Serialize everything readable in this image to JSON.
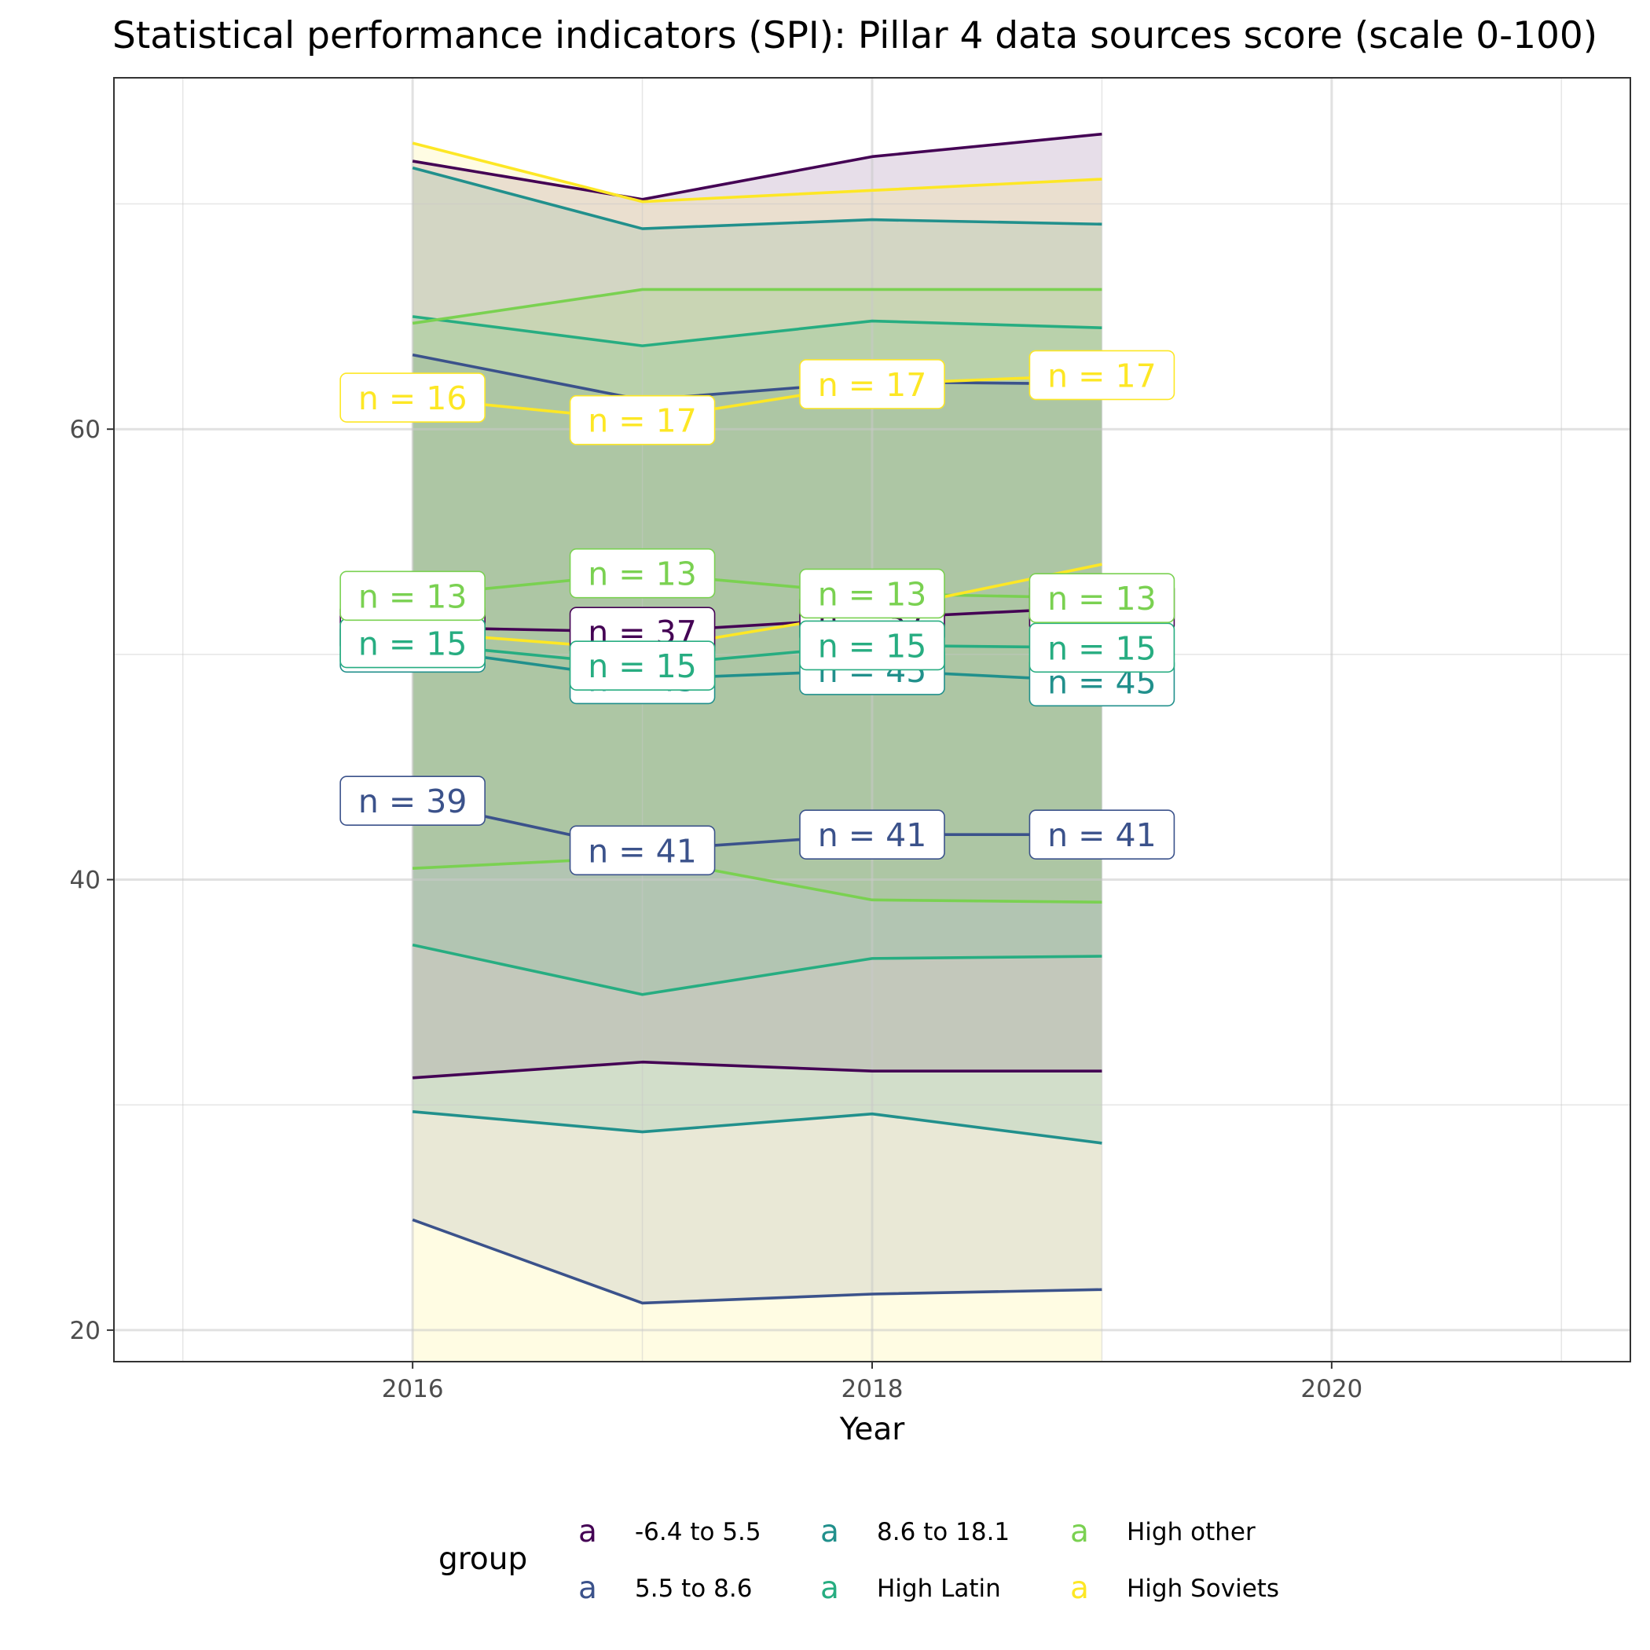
{
  "chart_data": {
    "type": "area",
    "title": "Statistical performance indicators (SPI): Pillar 4 data sources score (scale 0-100)",
    "xlabel": "Year",
    "ylabel": "",
    "xlim": [
      2014.7,
      2021.3
    ],
    "ylim": [
      18.6,
      75.6
    ],
    "x_ticks": [
      2016,
      2018,
      2020
    ],
    "y_ticks": [
      20,
      40,
      60
    ],
    "grid": true,
    "legend_position": "bottom",
    "legend_title": "group",
    "legend_key_glyph": "a",
    "x": [
      2016,
      2017,
      2018,
      2019
    ],
    "series": [
      {
        "name": "-6.4 to 5.5",
        "color": "#440154",
        "mean": [
          51.2,
          51.0,
          51.6,
          52.1
        ],
        "n": [
          37,
          37,
          37,
          37
        ],
        "upper": [
          71.9,
          70.2,
          72.1,
          73.1
        ],
        "lower": [
          31.2,
          31.9,
          31.5,
          31.5
        ]
      },
      {
        "name": "5.5 to 8.6",
        "color": "#3B528B",
        "mean": [
          43.5,
          41.3,
          42.0,
          42.0
        ],
        "n": [
          39,
          41,
          41,
          41
        ],
        "upper": [
          63.3,
          61.3,
          62.1,
          62.0
        ],
        "lower": [
          24.9,
          21.2,
          21.6,
          21.8
        ]
      },
      {
        "name": "8.6 to 18.1",
        "color": "#21908C",
        "mean": [
          50.3,
          48.9,
          49.3,
          48.8
        ],
        "n": [
          45,
          45,
          45,
          45
        ],
        "upper": [
          71.6,
          68.9,
          69.3,
          69.1
        ],
        "lower": [
          29.7,
          28.8,
          29.6,
          28.3
        ]
      },
      {
        "name": "High Latin",
        "color": "#27AD81",
        "mean": [
          50.5,
          49.5,
          50.4,
          50.3
        ],
        "n": [
          15,
          15,
          15,
          15
        ],
        "upper": [
          65.0,
          63.7,
          64.8,
          64.5
        ],
        "lower": [
          37.1,
          34.9,
          36.5,
          36.6
        ]
      },
      {
        "name": "High other",
        "color": "#7AD151",
        "mean": [
          52.6,
          53.6,
          52.7,
          52.5
        ],
        "n": [
          13,
          13,
          13,
          13
        ],
        "upper": [
          64.7,
          66.2,
          66.2,
          66.2
        ],
        "lower": [
          40.5,
          41.0,
          39.1,
          39.0
        ]
      },
      {
        "name": "High Soviets",
        "color": "#FDE725",
        "mean": [
          61.4,
          60.4,
          62.0,
          62.4
        ],
        "n": [
          16,
          17,
          17,
          17
        ],
        "mean_lower": [
          51.0,
          50.2,
          51.9,
          54.0
        ],
        "upper": [
          72.7,
          70.1,
          70.6,
          71.1
        ],
        "lower": [
          null,
          null,
          null,
          null
        ]
      }
    ]
  }
}
